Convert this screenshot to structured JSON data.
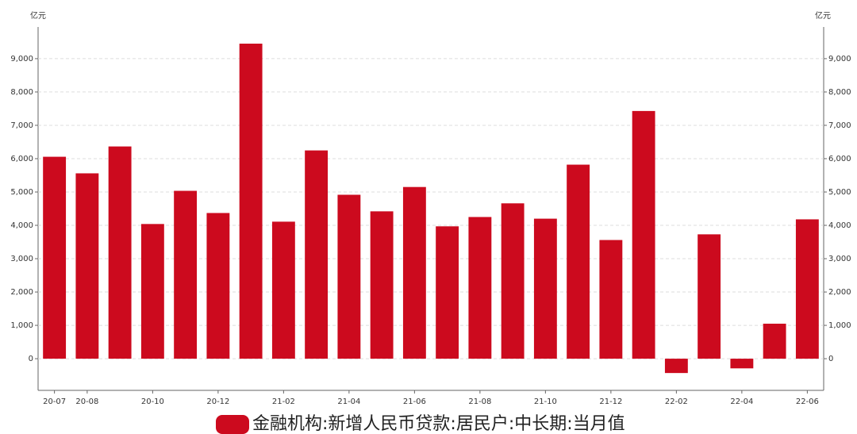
{
  "chart_data": {
    "type": "bar",
    "y_unit": "亿元",
    "series": [
      {
        "name": "金融机构:新增人民币贷款:居民户:中长期:当月值",
        "color": "#cc0a1e",
        "values": [
          6057,
          5560,
          6366,
          4040,
          5035,
          4370,
          9450,
          4110,
          6247,
          4917,
          4420,
          5150,
          3970,
          4250,
          4660,
          4200,
          5820,
          3560,
          7430,
          -430,
          3730,
          -290,
          1050,
          4180
        ]
      }
    ],
    "categories": [
      "20-07",
      "20-08",
      null,
      "20-10",
      null,
      "20-12",
      null,
      "21-02",
      null,
      "21-04",
      null,
      "21-06",
      null,
      "21-08",
      null,
      "21-10",
      null,
      "21-12",
      null,
      "22-02",
      null,
      "22-04",
      null,
      "22-06"
    ],
    "ylim": [
      -950,
      9950
    ],
    "yticks": [
      {
        "value": 0,
        "label": "0"
      },
      {
        "value": 1000,
        "label": "1,000"
      },
      {
        "value": 2000,
        "label": "2,000"
      },
      {
        "value": 3000,
        "label": "3,000"
      },
      {
        "value": 4000,
        "label": "4,000"
      },
      {
        "value": 5000,
        "label": "5,000"
      },
      {
        "value": 6000,
        "label": "6,000"
      },
      {
        "value": 7000,
        "label": "7,000"
      },
      {
        "value": 8000,
        "label": "8,000"
      },
      {
        "value": 9000,
        "label": "9,000"
      }
    ],
    "grid": true
  }
}
